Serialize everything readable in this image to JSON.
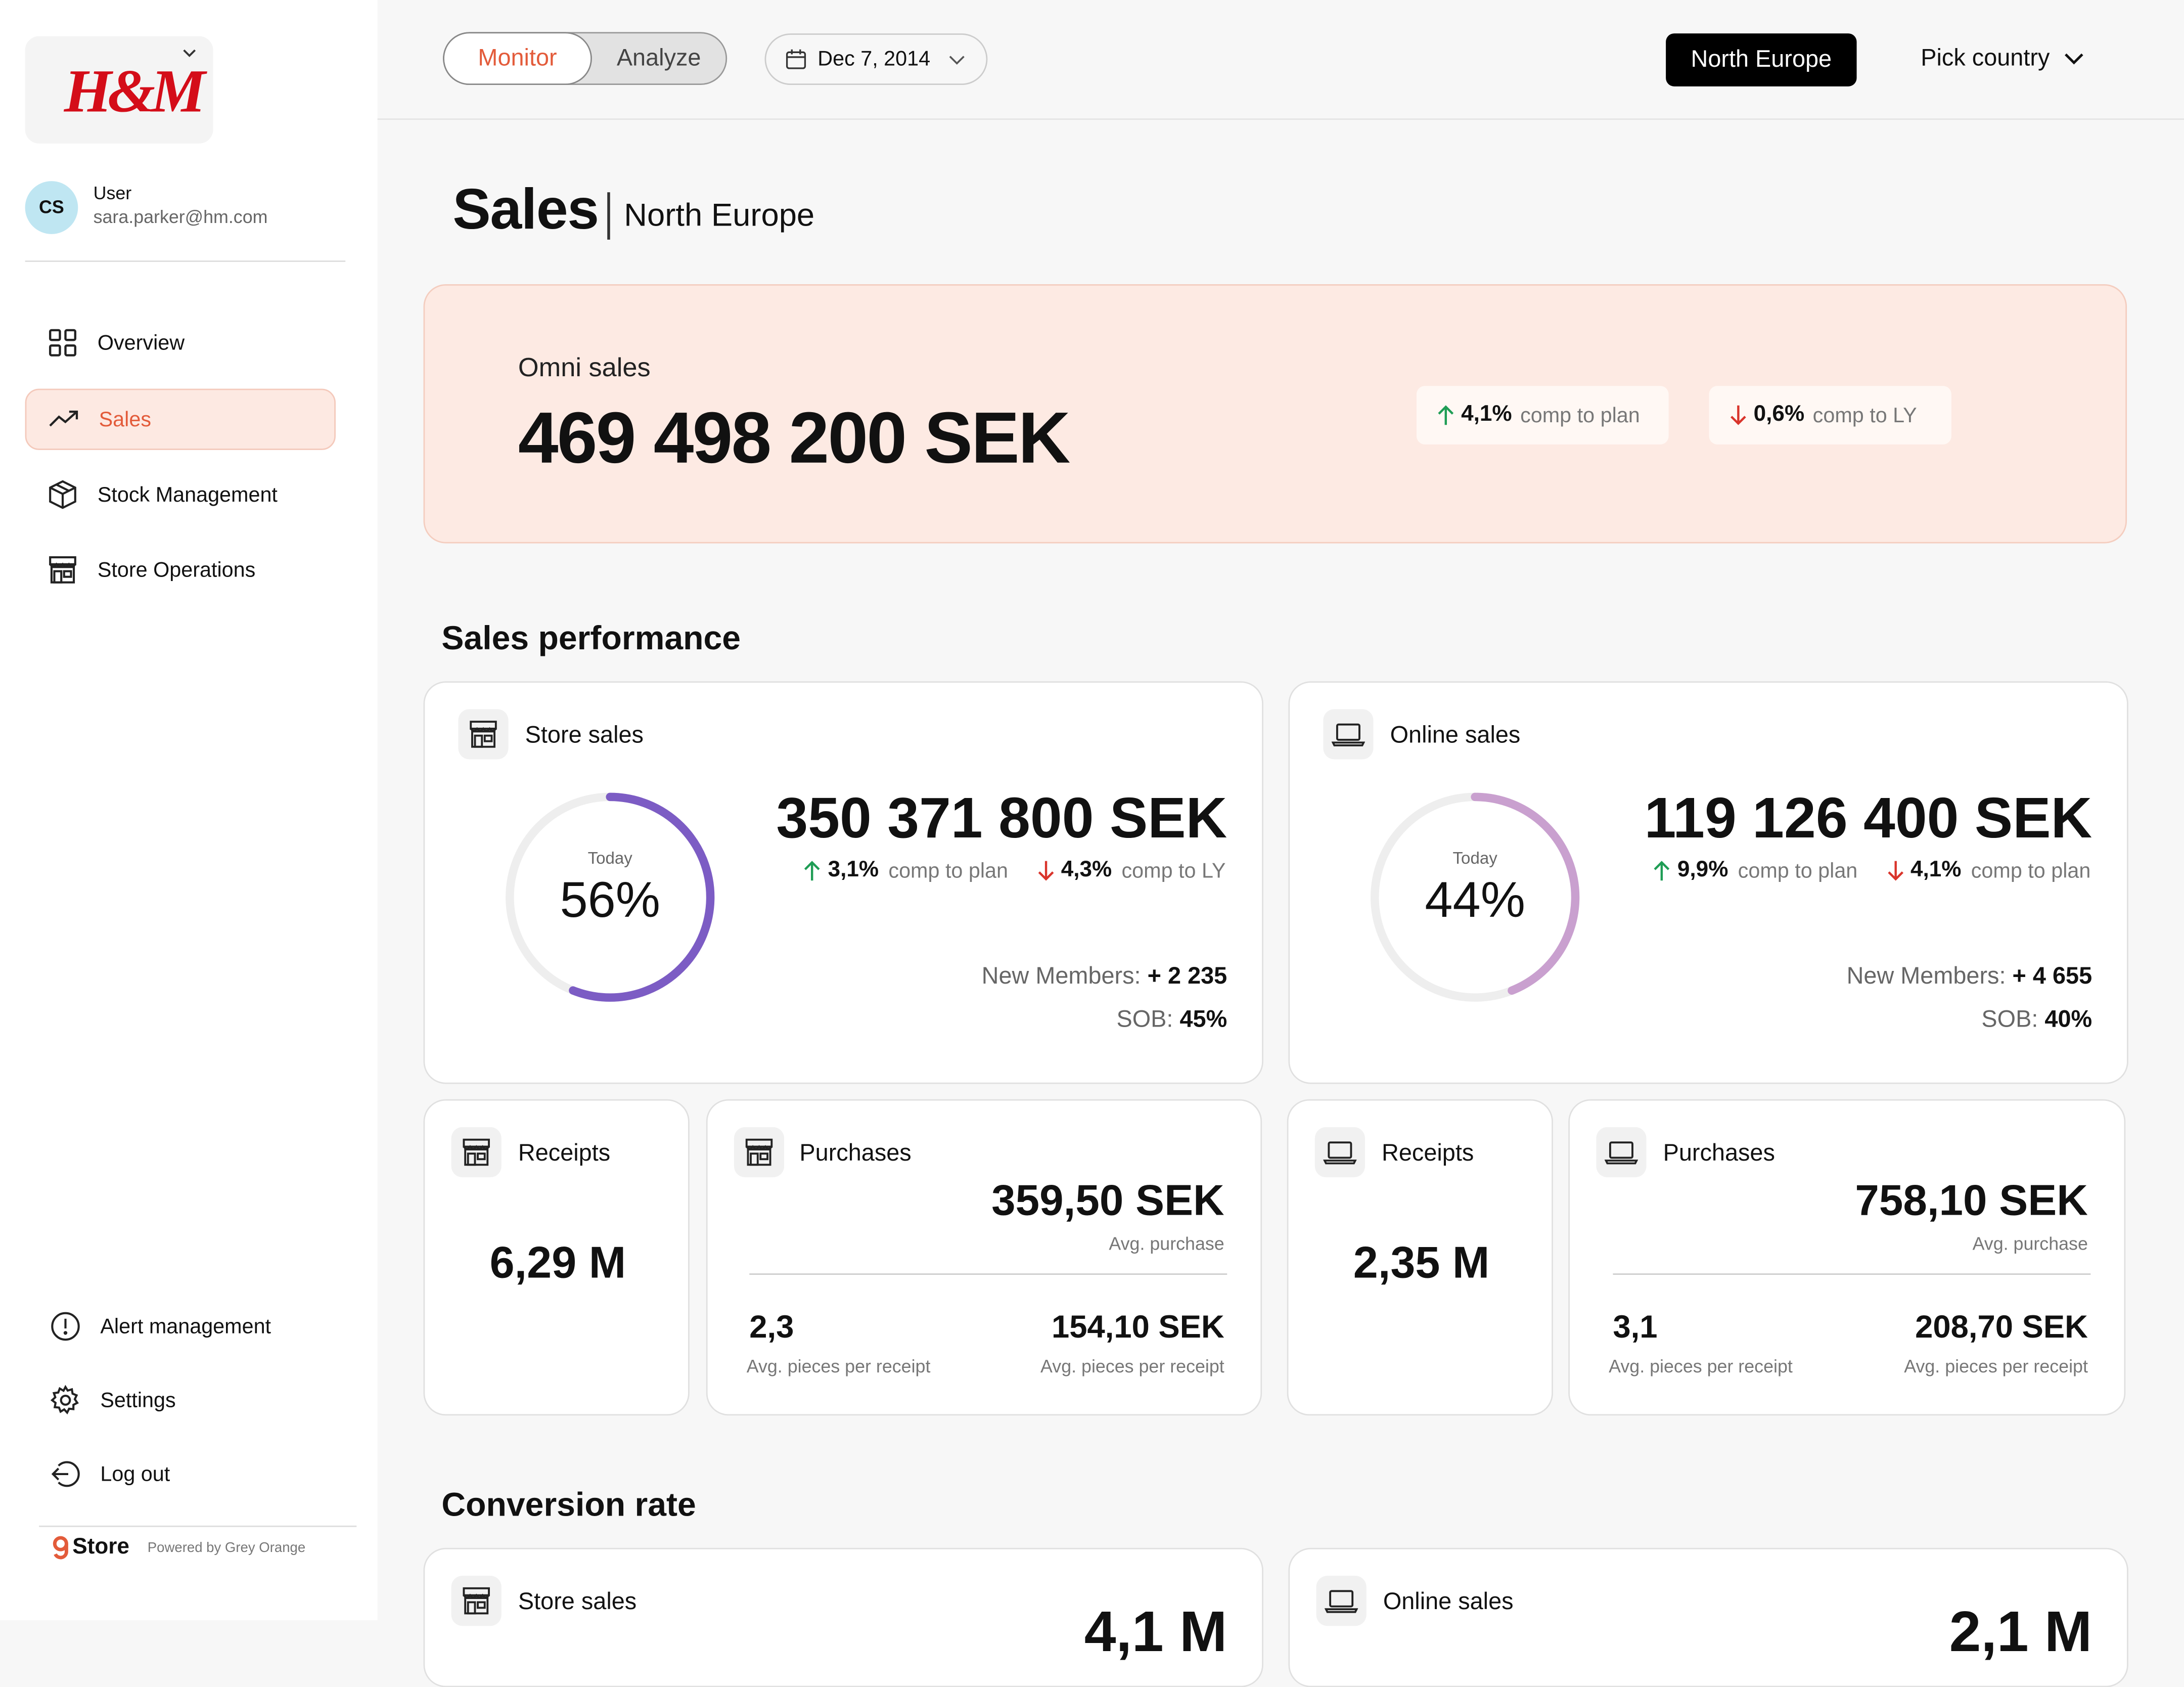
{
  "sidebar": {
    "brand": "H&M",
    "user": {
      "initials": "CS",
      "name": "User",
      "email": "sara.parker@hm.com"
    },
    "nav": [
      {
        "label": "Overview",
        "icon": "grid-icon",
        "active": false
      },
      {
        "label": "Sales",
        "icon": "trend-up-icon",
        "active": true
      },
      {
        "label": "Stock Management",
        "icon": "box-icon",
        "active": false
      },
      {
        "label": "Store Operations",
        "icon": "store-icon",
        "active": false
      }
    ],
    "bottom_nav": [
      {
        "label": "Alert management",
        "icon": "alert-icon"
      },
      {
        "label": "Settings",
        "icon": "gear-icon"
      },
      {
        "label": "Log out",
        "icon": "logout-icon"
      }
    ],
    "footer": {
      "product": "Store",
      "powered": "Powered by Grey Orange"
    }
  },
  "topbar": {
    "mode_tabs": [
      "Monitor",
      "Analyze"
    ],
    "active_mode": "Monitor",
    "date": "Dec 7, 2014",
    "region": "North Europe",
    "country_picker": "Pick country"
  },
  "page": {
    "title": "Sales",
    "subtitle": "North Europe"
  },
  "omni": {
    "label": "Omni sales",
    "value": "469 498 200 SEK",
    "chips": [
      {
        "direction": "up",
        "value": "4,1%",
        "label": "comp to plan"
      },
      {
        "direction": "down",
        "value": "0,6%",
        "label": "comp to LY"
      }
    ]
  },
  "sections": {
    "performance": "Sales performance",
    "conversion": "Conversion rate"
  },
  "performance": [
    {
      "title": "Store sales",
      "icon": "store-icon",
      "ring": {
        "label": "Today",
        "percent_text": "56%",
        "fraction": 0.56,
        "color": "#7c5cc4"
      },
      "value": "350 371 800 SEK",
      "stats": [
        {
          "direction": "up",
          "value": "3,1%",
          "label": "comp to plan"
        },
        {
          "direction": "down",
          "value": "4,3%",
          "label": "comp to LY"
        }
      ],
      "members_label": "New Members:",
      "members_value": "+ 2 235",
      "sob_label": "SOB:",
      "sob_value": "45%"
    },
    {
      "title": "Online sales",
      "icon": "laptop-icon",
      "ring": {
        "label": "Today",
        "percent_text": "44%",
        "fraction": 0.44,
        "color": "#c9a0cf"
      },
      "value": "119 126 400 SEK",
      "stats": [
        {
          "direction": "up",
          "value": "9,9%",
          "label": "comp to plan"
        },
        {
          "direction": "down",
          "value": "4,1%",
          "label": "comp to plan"
        }
      ],
      "members_label": "New Members:",
      "members_value": "+ 4 655",
      "sob_label": "SOB:",
      "sob_value": "40%"
    }
  ],
  "receipts": [
    {
      "title": "Receipts",
      "icon": "store-icon",
      "value": "6,29 M"
    },
    {
      "title": "Receipts",
      "icon": "laptop-icon",
      "value": "2,35 M"
    }
  ],
  "purchases": [
    {
      "title": "Purchases",
      "icon": "store-icon",
      "value": "359,50 SEK",
      "value_label": "Avg. purchase",
      "left_value": "2,3",
      "left_label": "Avg. pieces per receipt",
      "right_value": "154,10 SEK",
      "right_label": "Avg. pieces per receipt"
    },
    {
      "title": "Purchases",
      "icon": "laptop-icon",
      "value": "758,10 SEK",
      "value_label": "Avg. purchase",
      "left_value": "3,1",
      "left_label": "Avg. pieces per receipt",
      "right_value": "208,70 SEK",
      "right_label": "Avg. pieces per receipt"
    }
  ],
  "conversion": [
    {
      "title": "Store sales",
      "icon": "store-icon",
      "value": "4,1 M"
    },
    {
      "title": "Online sales",
      "icon": "laptop-icon",
      "value": "2,1 M"
    }
  ],
  "colors": {
    "accent": "#e35b3a",
    "up": "#1f9d55",
    "down": "#d9342b",
    "omni_bg": "#fdeae3"
  }
}
